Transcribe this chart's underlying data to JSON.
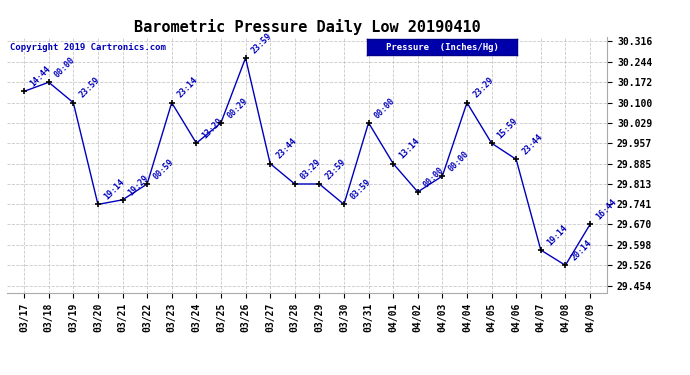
{
  "title": "Barometric Pressure Daily Low 20190410",
  "copyright": "Copyright 2019 Cartronics.com",
  "legend_label": "Pressure  (Inches/Hg)",
  "ylim_min": 29.43,
  "ylim_max": 30.33,
  "yticks": [
    29.454,
    29.526,
    29.598,
    29.67,
    29.741,
    29.813,
    29.885,
    29.957,
    30.029,
    30.1,
    30.172,
    30.244,
    30.316
  ],
  "dates": [
    "03/17",
    "03/18",
    "03/19",
    "03/20",
    "03/21",
    "03/22",
    "03/23",
    "03/24",
    "03/25",
    "03/26",
    "03/27",
    "03/28",
    "03/29",
    "03/30",
    "03/31",
    "04/01",
    "04/02",
    "04/03",
    "04/04",
    "04/05",
    "04/06",
    "04/07",
    "04/08",
    "04/09"
  ],
  "values": [
    30.14,
    30.172,
    30.1,
    29.741,
    29.757,
    29.813,
    30.1,
    29.957,
    30.029,
    30.258,
    29.885,
    29.813,
    29.813,
    29.741,
    30.029,
    29.885,
    29.785,
    29.841,
    30.1,
    29.957,
    29.9,
    29.58,
    29.526,
    29.67
  ],
  "annotations": [
    "14:44",
    "00:00",
    "23:59",
    "19:14",
    "19:29",
    "00:59",
    "23:14",
    "13:29",
    "00:29",
    "23:59",
    "23:44",
    "03:29",
    "23:59",
    "03:59",
    "00:00",
    "13:14",
    "00:00",
    "00:00",
    "23:29",
    "15:59",
    "23:44",
    "19:14",
    "20:14",
    "16:44"
  ],
  "line_color": "#0000BB",
  "marker_color": "#000000",
  "bg_color": "#ffffff",
  "grid_color": "#bbbbbb",
  "title_fontsize": 11,
  "annotation_fontsize": 6,
  "tick_fontsize": 7,
  "legend_bg": "#0000AA",
  "legend_fg": "#ffffff"
}
